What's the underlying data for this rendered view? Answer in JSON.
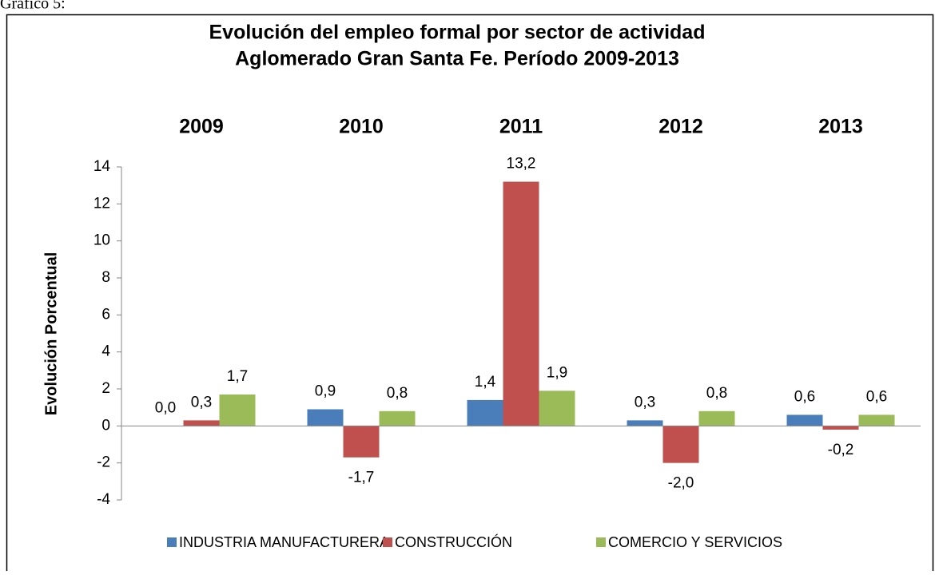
{
  "caption": "Gráfico 5:",
  "chart_data": {
    "type": "bar",
    "title": [
      "Evolución del empleo formal por sector de actividad",
      "Aglomerado Gran Santa Fe. Período 2009-2013"
    ],
    "y_label": "Evolución Porcentual",
    "categories": [
      "2009",
      "2010",
      "2011",
      "2012",
      "2013"
    ],
    "series": [
      {
        "name": "INDUSTRIA MANUFACTURERA",
        "color": "#4a7ebb",
        "values": [
          0.0,
          0.9,
          1.4,
          0.3,
          0.6
        ],
        "value_labels": [
          "0,0",
          "0,9",
          "1,4",
          "0,3",
          "0,6"
        ]
      },
      {
        "name": "CONSTRUCCIÓN",
        "color": "#c0504d",
        "values": [
          0.3,
          -1.7,
          13.2,
          -2.0,
          -0.2
        ],
        "value_labels": [
          "0,3",
          "-1,7",
          "13,2",
          "-2,0",
          "-0,2"
        ]
      },
      {
        "name": "COMERCIO Y SERVICIOS",
        "color": "#9bbb59",
        "values": [
          1.7,
          0.8,
          1.9,
          0.8,
          0.6
        ],
        "value_labels": [
          "1,7",
          "0,8",
          "1,9",
          "0,8",
          "0,6"
        ]
      }
    ],
    "ylim": [
      -4,
      14
    ],
    "yticks": [
      -4,
      -2,
      0,
      2,
      4,
      6,
      8,
      10,
      12,
      14
    ],
    "legend": "bottom"
  }
}
